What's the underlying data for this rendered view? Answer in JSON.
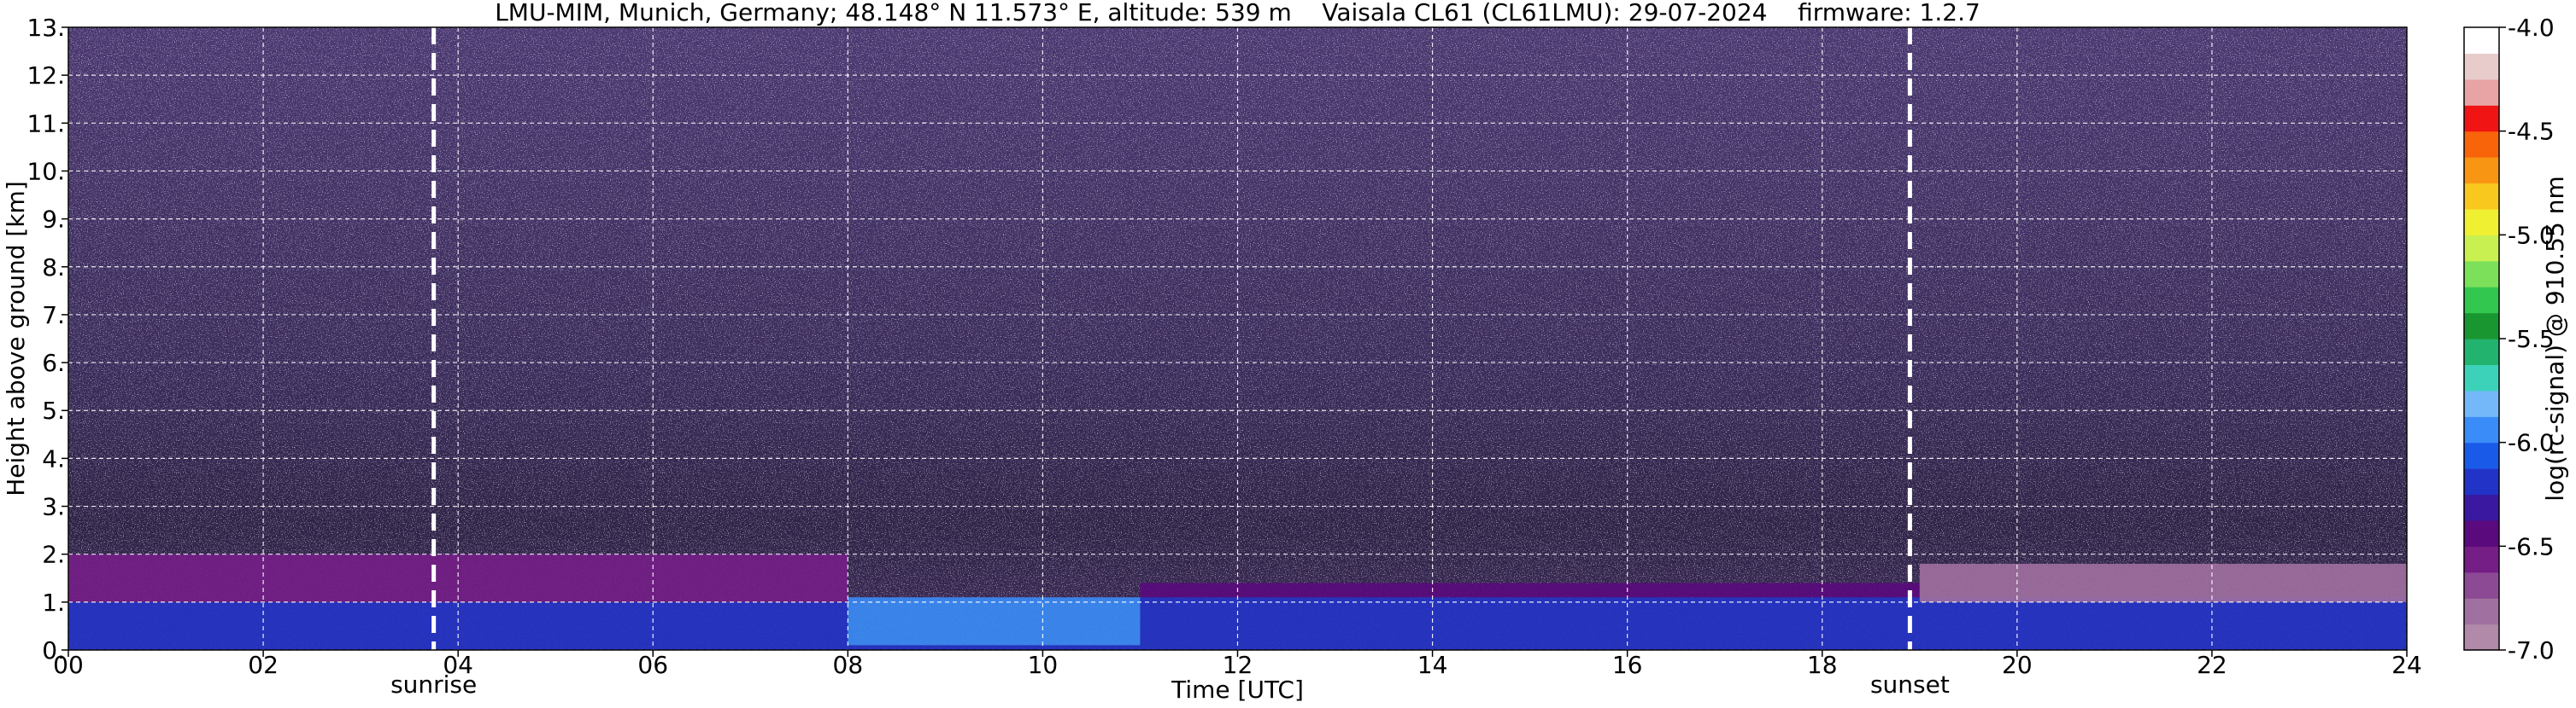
{
  "chart_data": {
    "type": "heatmap",
    "title": "LMU-MIM, Munich, Germany; 48.148° N 11.573° E, altitude: 539 m    Vaisala CL61 (CL61LMU): 29-07-2024    firmware: 1.2.7",
    "xlabel": "Time [UTC]",
    "ylabel": "Height above ground [km]",
    "xlim": [
      0,
      24
    ],
    "ylim": [
      0,
      13
    ],
    "x_ticks": [
      "00",
      "02",
      "04",
      "06",
      "08",
      "10",
      "12",
      "14",
      "16",
      "18",
      "20",
      "22",
      "24"
    ],
    "y_ticks": [
      "0.",
      "1.",
      "2.",
      "3.",
      "4.",
      "5.",
      "6.",
      "7.",
      "8.",
      "9.",
      "10.",
      "11.",
      "12.",
      "13."
    ],
    "grid": true,
    "events": [
      {
        "label": "sunrise",
        "time": 3.75
      },
      {
        "label": "sunset",
        "time": 18.9
      }
    ],
    "colorbar": {
      "label": "log(rc-signal) @ 910.55 nm",
      "range": [
        -7.0,
        -4.0
      ],
      "tick_values": [
        -7.0,
        -6.5,
        -6.0,
        -5.5,
        -5.0,
        -4.5,
        -4.0
      ],
      "tick_labels": [
        "-7.0",
        "-6.5",
        "-6.0",
        "-5.5",
        "-5.0",
        "-4.5",
        "-4.0"
      ],
      "colors": [
        "#b08aa8",
        "#a070a0",
        "#8c4a94",
        "#741e86",
        "#5a0a7c",
        "#3a18a0",
        "#2233c8",
        "#1a5ae8",
        "#3a8cf8",
        "#74b8fa",
        "#3cd2ba",
        "#22b46e",
        "#1a9630",
        "#32c850",
        "#7ce05a",
        "#c8f050",
        "#f0f032",
        "#f8c81e",
        "#f89614",
        "#f8640a",
        "#f01414",
        "#e8a4a4",
        "#e8cccc",
        "#ffffff"
      ]
    },
    "layers": [
      {
        "from_time": 0,
        "to_time": 24,
        "from_height": 0,
        "to_height": 0.1,
        "value": -6.2
      },
      {
        "from_time": 0,
        "to_time": 8,
        "from_height": 0.1,
        "to_height": 1.0,
        "value": -6.2
      },
      {
        "from_time": 8,
        "to_time": 11,
        "from_height": 0.1,
        "to_height": 1.1,
        "value": -5.9
      },
      {
        "from_time": 11,
        "to_time": 24,
        "from_height": 0.1,
        "to_height": 1.1,
        "value": -6.25
      },
      {
        "from_time": 0,
        "to_time": 8,
        "from_height": 1.0,
        "to_height": 2.0,
        "value": -6.55
      },
      {
        "from_time": 11,
        "to_time": 19,
        "from_height": 1.1,
        "to_height": 1.4,
        "value": -6.4
      },
      {
        "from_time": 19,
        "to_time": 24,
        "from_height": 1.0,
        "to_height": 1.8,
        "value": -6.85
      }
    ]
  }
}
